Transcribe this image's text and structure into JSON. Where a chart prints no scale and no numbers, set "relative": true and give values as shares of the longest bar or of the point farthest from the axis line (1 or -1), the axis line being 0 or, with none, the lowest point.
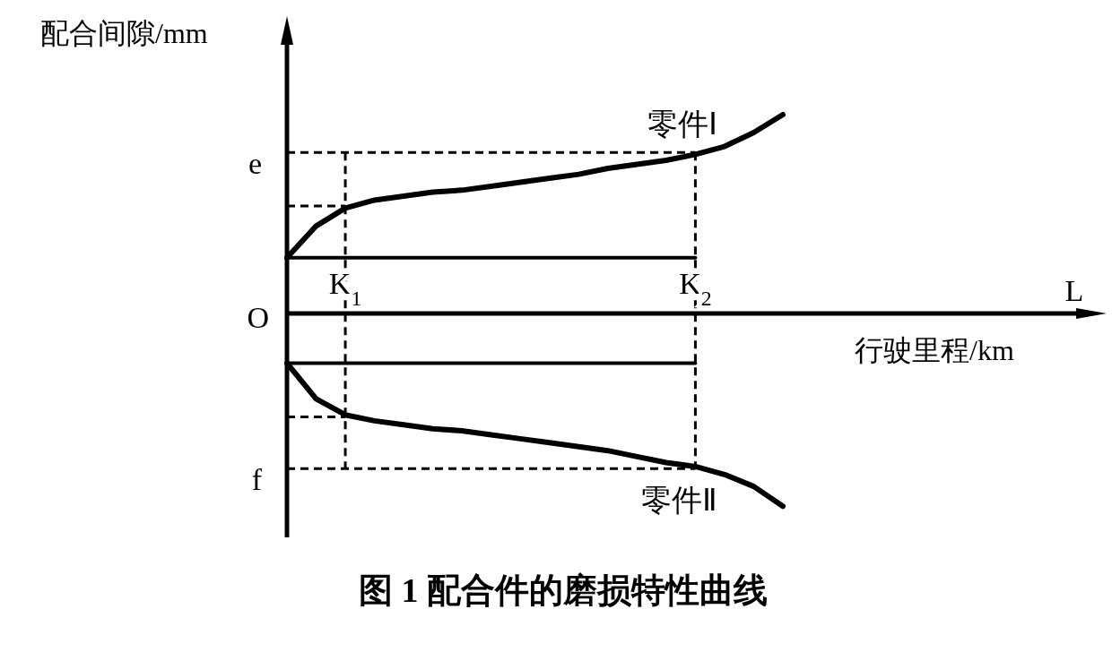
{
  "chart_data": {
    "type": "line",
    "relative": true,
    "title": "图 1   配合件的磨损特性曲线",
    "ylabel": "配合间隙/mm",
    "xlabel": "行驶里程/km",
    "categories": [
      null,
      null,
      "K$_{1}$",
      null,
      null,
      null,
      null,
      null,
      null,
      null,
      null,
      null,
      null,
      null,
      "K$_{2}$",
      null,
      null,
      null
    ],
    "series": [
      {
        "name": "零件Ⅰ",
        "color": "#000000",
        "values": [
          0.28,
          0.44,
          0.53,
          0.57,
          0.59,
          0.61,
          0.62,
          0.64,
          0.66,
          0.68,
          0.7,
          0.73,
          0.75,
          0.77,
          0.8,
          0.84,
          0.91,
          1.0
        ]
      },
      {
        "name": "零件Ⅱ",
        "color": "#000000",
        "values": [
          -0.25,
          -0.43,
          -0.51,
          -0.54,
          -0.56,
          -0.58,
          -0.59,
          -0.61,
          -0.63,
          -0.65,
          -0.67,
          -0.69,
          -0.72,
          -0.75,
          -0.77,
          -0.81,
          -0.87,
          -0.97
        ]
      },
      {
        "name": "e",
        "color": "#000000",
        "line_style": "dashed",
        "values": [
          0.81,
          0.81,
          0.81,
          0.81,
          0.81,
          0.81,
          0.81,
          0.81,
          0.81,
          0.81,
          0.81,
          0.81,
          0.81,
          0.81,
          0.81,
          null,
          null,
          null
        ]
      },
      {
        "name": "f",
        "color": "#000000",
        "line_style": "dashed",
        "values": [
          -0.78,
          -0.78,
          -0.78,
          -0.78,
          -0.78,
          -0.78,
          -0.78,
          -0.78,
          -0.78,
          -0.78,
          -0.78,
          -0.78,
          -0.78,
          -0.78,
          -0.78,
          null,
          null,
          null
        ]
      },
      {
        "color": "#000000",
        "values": [
          0.28,
          0.28,
          0.28,
          0.28,
          0.28,
          0.28,
          0.28,
          0.28,
          0.28,
          0.28,
          0.28,
          0.28,
          0.28,
          0.28,
          0.28,
          null,
          null,
          null
        ]
      },
      {
        "color": "#000000",
        "values": [
          -0.25,
          -0.25,
          -0.25,
          -0.25,
          -0.25,
          -0.25,
          -0.25,
          -0.25,
          -0.25,
          -0.25,
          -0.25,
          -0.25,
          -0.25,
          -0.25,
          -0.25,
          null,
          null,
          null
        ]
      },
      {
        "color": "#000000",
        "line_style": "dashed",
        "values": [
          0.54,
          0.54,
          0.54,
          null,
          null,
          null,
          null,
          null,
          null,
          null,
          null,
          null,
          null,
          null,
          null,
          null,
          null,
          null
        ]
      },
      {
        "color": "#000000",
        "line_style": "dashed",
        "values": [
          -0.52,
          -0.52,
          -0.52,
          null,
          null,
          null,
          null,
          null,
          null,
          null,
          null,
          null,
          null,
          null,
          null,
          null,
          null,
          null
        ]
      }
    ],
    "ref_lines": [
      {
        "axis": "x",
        "value": "K$_{1}$",
        "line_style": "dashed"
      },
      {
        "axis": "x",
        "value": "K$_{2}$",
        "line_style": "dashed"
      }
    ],
    "annotations": [
      "O",
      "L"
    ]
  }
}
